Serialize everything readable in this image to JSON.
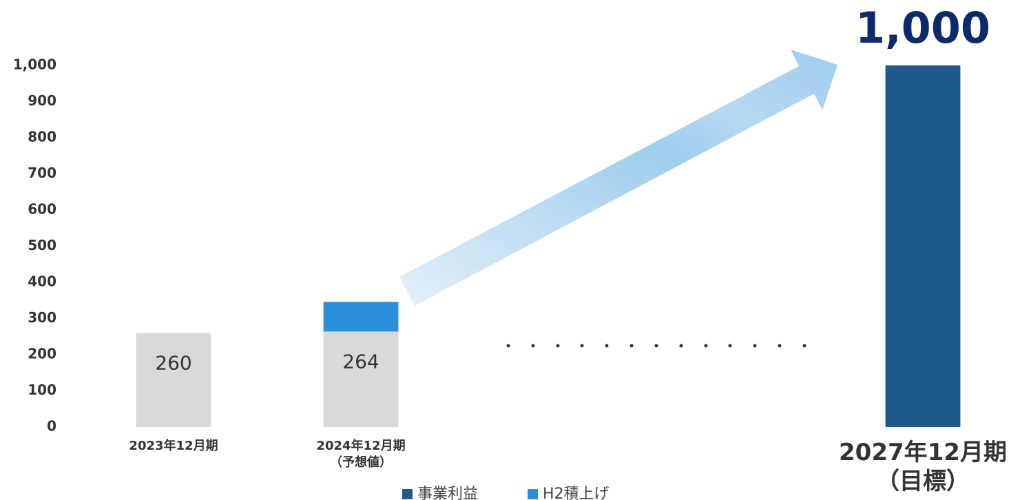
{
  "chart_data": {
    "type": "bar",
    "stacked": true,
    "categories": [
      [
        "2023年12月期"
      ],
      [
        "2024年12月期",
        "（予想値）"
      ],
      null,
      null,
      [
        "2027年12月期",
        "（目標）"
      ]
    ],
    "series": [
      {
        "name": "事業利益",
        "color": "#1f5a8a",
        "point_colors": [
          "#d9d9d9",
          "#d9d9d9",
          null,
          null,
          "#1f5a8a"
        ],
        "values": [
          260,
          264,
          null,
          null,
          1000
        ],
        "value_labels": [
          "260",
          "264",
          null,
          null,
          "1,000"
        ]
      },
      {
        "name": "H2積上げ",
        "color": "#2b90dc",
        "values": [
          null,
          82,
          null,
          null,
          null
        ]
      }
    ],
    "ylim": [
      0,
      1000
    ],
    "yticks": [
      0,
      100,
      200,
      300,
      400,
      500,
      600,
      700,
      800,
      900,
      {
        "value": 1000,
        "label": "1,000"
      }
    ],
    "grid": false,
    "legend": "bottom"
  }
}
